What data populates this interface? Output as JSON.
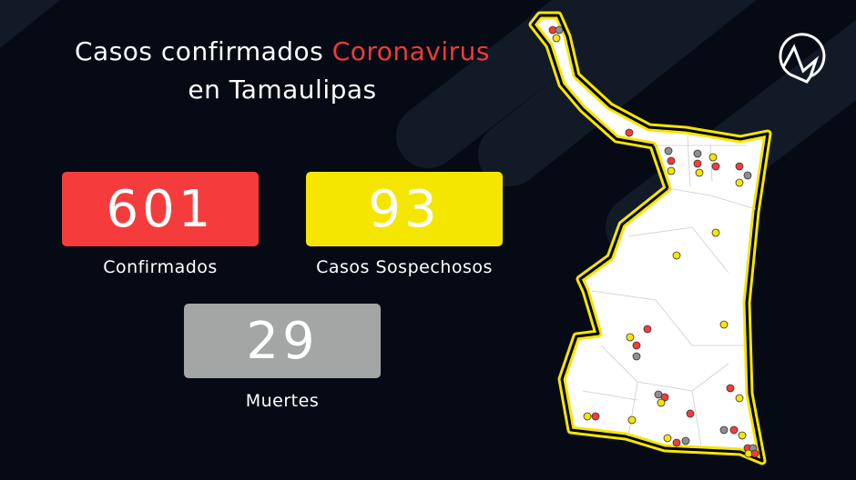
{
  "title": {
    "line1_prefix": "Casos confirmados",
    "line1_highlight": "Coronavirus",
    "line2": "en Tamaulipas"
  },
  "stats": [
    {
      "value": "601",
      "label": "Confirmados",
      "color": "#f53c3c"
    },
    {
      "value": "93",
      "label": "Casos Sospechosos",
      "color": "#f5e600"
    },
    {
      "value": "29",
      "label": "Muertes",
      "color": "#a3a6a4"
    }
  ],
  "colors": {
    "background": "#050a14",
    "accent": "#f03a3a",
    "map_border": "#f5e600",
    "map_fill": "#ffffff"
  },
  "logo": {
    "icon": "brand-logo-icon"
  }
}
